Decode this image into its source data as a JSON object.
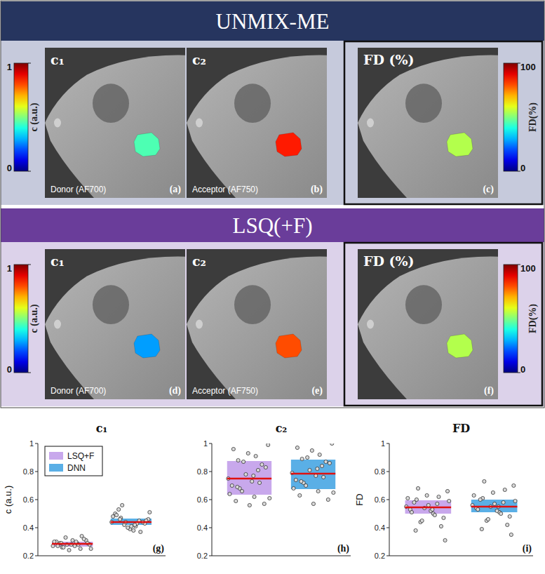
{
  "sections": [
    {
      "title": "UNMIX-ME",
      "maps": [
        {
          "label": "c₁",
          "caption": "Donor (AF700)",
          "panel": "(a)",
          "value": 0.45
        },
        {
          "label": "c₂",
          "caption": "Acceptor (AF750)",
          "panel": "(b)",
          "value": 0.85
        },
        {
          "label": "FD (%)",
          "panel": "(c)",
          "value": 55
        }
      ]
    },
    {
      "title": "LSQ(+F)",
      "maps": [
        {
          "label": "c₁",
          "caption": "Donor (AF700)",
          "panel": "(d)",
          "value": 0.28
        },
        {
          "label": "c₂",
          "caption": "Acceptor (AF750)",
          "panel": "(e)",
          "value": 0.8
        },
        {
          "label": "FD (%)",
          "panel": "(f)",
          "value": 55
        }
      ]
    }
  ],
  "colorbars": [
    {
      "label": "c (a.u.)",
      "range": [
        0,
        1
      ],
      "ticks": [
        0,
        1
      ]
    },
    {
      "label": "FD(%)",
      "range": [
        0,
        100
      ],
      "ticks": [
        0,
        100
      ]
    }
  ],
  "chart_data": [
    {
      "type": "box",
      "title": "c₁",
      "panel": "(g)",
      "y_label": "c (a.u.)",
      "ylim": [
        0.2,
        1
      ],
      "yticks": [
        0.2,
        0.4,
        0.6,
        0.8,
        1
      ],
      "tick_labels": "y",
      "legend": "upper left",
      "series": [
        {
          "name": "LSQ+F",
          "color": "#c8a8ec",
          "q1": 0.265,
          "median": 0.285,
          "q3": 0.3,
          "points": [
            0.27,
            0.29,
            0.26,
            0.31,
            0.28,
            0.3,
            0.25,
            0.33,
            0.28,
            0.27,
            0.29,
            0.32,
            0.24,
            0.3,
            0.28,
            0.26,
            0.29,
            0.31,
            0.27,
            0.34,
            0.28,
            0.25,
            0.3,
            0.29
          ]
        },
        {
          "name": "DNN",
          "color": "#5aafe6",
          "q1": 0.42,
          "median": 0.44,
          "q3": 0.465,
          "points": [
            0.44,
            0.41,
            0.47,
            0.43,
            0.39,
            0.5,
            0.45,
            0.42,
            0.46,
            0.38,
            0.53,
            0.44,
            0.4,
            0.48,
            0.43,
            0.56,
            0.45,
            0.41,
            0.49,
            0.37,
            0.44,
            0.51,
            0.42,
            0.46
          ]
        }
      ]
    },
    {
      "type": "box",
      "title": "c₂",
      "panel": "(h)",
      "ylim": [
        0.2,
        1
      ],
      "yticks": [
        0.2,
        0.4,
        0.6,
        0.8,
        1
      ],
      "tick_labels": "y",
      "series": [
        {
          "color": "#c8a8ec",
          "q1": 0.635,
          "median": 0.75,
          "q3": 0.875,
          "points": [
            0.75,
            0.62,
            0.88,
            0.57,
            0.93,
            0.7,
            0.81,
            0.66,
            0.99,
            0.73,
            0.59,
            0.85,
            0.78,
            0.64,
            0.91,
            0.68,
            0.83,
            0.56,
            0.96,
            0.72,
            0.87,
            0.61,
            0.77,
            0.69
          ]
        },
        {
          "color": "#5aafe6",
          "q1": 0.675,
          "median": 0.785,
          "q3": 0.885,
          "points": [
            0.79,
            0.66,
            0.89,
            0.6,
            0.95,
            0.74,
            0.84,
            0.7,
            1,
            0.77,
            0.63,
            0.87,
            0.81,
            0.68,
            0.92,
            0.72,
            0.86,
            0.57,
            0.97,
            0.76,
            0.9,
            0.65,
            0.82,
            0.73
          ]
        }
      ]
    },
    {
      "type": "box",
      "title": "FD",
      "panel": "(i)",
      "y_label": "FD",
      "ylim": [
        0.2,
        1
      ],
      "yticks": [
        0.2,
        0.4,
        0.6,
        0.8,
        1
      ],
      "tick_labels": "y",
      "series": [
        {
          "color": "#c8a8ec",
          "q1": 0.5,
          "median": 0.545,
          "q3": 0.595,
          "points": [
            0.55,
            0.5,
            0.6,
            0.47,
            0.63,
            0.53,
            0.57,
            0.44,
            0.66,
            0.52,
            0.58,
            0.41,
            0.54,
            0.61,
            0.49,
            0.68,
            0.31,
            0.56,
            0.51,
            0.62,
            0.45,
            0.59,
            0.53,
            0.38
          ]
        },
        {
          "color": "#5aafe6",
          "q1": 0.51,
          "median": 0.55,
          "q3": 0.6,
          "points": [
            0.56,
            0.51,
            0.61,
            0.48,
            0.65,
            0.54,
            0.58,
            0.45,
            0.7,
            0.52,
            0.6,
            0.42,
            0.55,
            0.63,
            0.5,
            0.73,
            0.35,
            0.57,
            0.53,
            0.67,
            0.46,
            0.59,
            0.55,
            0.39
          ]
        }
      ]
    }
  ]
}
